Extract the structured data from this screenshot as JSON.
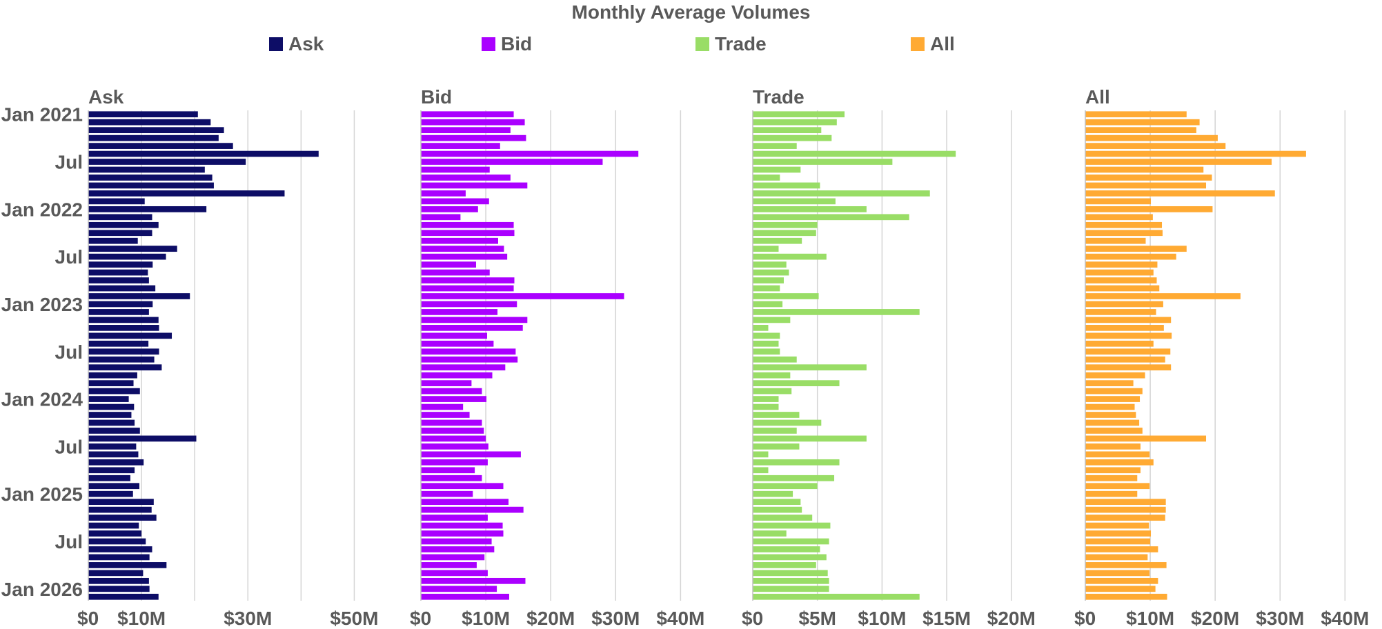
{
  "chart_data": {
    "type": "bar",
    "title": "Monthly Average Volumes",
    "orientation": "horizontal",
    "legend": [
      "Ask",
      "Bid",
      "Trade",
      "All"
    ],
    "legend_position": "top",
    "grid": true,
    "month_labels": [
      "Jan 2021",
      "Jul",
      "Jan 2022",
      "Jul",
      "Jan 2023",
      "Jul",
      "Jan 2024",
      "Jul",
      "Jan 2025",
      "Jul",
      "Jan 2026"
    ],
    "panels": [
      {
        "name": "Ask",
        "color": "#0d0d66",
        "xlim": [
          0,
          55
        ],
        "gridlines": [
          10,
          20,
          30,
          40,
          50
        ],
        "ticks": [
          {
            "v": 0,
            "label": "$0"
          },
          {
            "v": 10,
            "label": "$10M"
          },
          {
            "v": 30,
            "label": "$30M"
          },
          {
            "v": 50,
            "label": "$50M"
          }
        ],
        "values": [
          20.6,
          23.0,
          25.5,
          24.5,
          27.2,
          43.3,
          29.6,
          21.9,
          23.3,
          23.6,
          36.9,
          10.6,
          22.2,
          12.0,
          13.2,
          12.0,
          9.3,
          16.7,
          14.6,
          12.1,
          11.2,
          11.4,
          12.6,
          19.1,
          12.1,
          11.4,
          13.2,
          13.3,
          15.7,
          11.3,
          13.3,
          12.4,
          13.8,
          9.2,
          8.5,
          9.7,
          7.6,
          8.6,
          8.1,
          8.7,
          9.7,
          20.3,
          9.0,
          9.4,
          10.4,
          8.7,
          7.9,
          9.6,
          8.4,
          12.3,
          11.9,
          12.8,
          9.5,
          10.0,
          10.8,
          12.0,
          11.5,
          14.7,
          10.3,
          11.4,
          11.5,
          13.2
        ]
      },
      {
        "name": "Bid",
        "color": "#aa00ff",
        "xlim": [
          0,
          44
        ],
        "gridlines": [
          10,
          20,
          30,
          40
        ],
        "ticks": [
          {
            "v": 0,
            "label": "$0"
          },
          {
            "v": 10,
            "label": "$10M"
          },
          {
            "v": 20,
            "label": "$20M"
          },
          {
            "v": 30,
            "label": "$30M"
          },
          {
            "v": 40,
            "label": "$40M"
          }
        ],
        "values": [
          14.3,
          16.0,
          13.8,
          16.2,
          12.2,
          33.5,
          28.0,
          10.6,
          13.8,
          16.4,
          6.9,
          10.5,
          8.8,
          6.1,
          14.3,
          14.4,
          11.9,
          12.8,
          13.3,
          8.5,
          10.6,
          14.4,
          14.3,
          31.3,
          14.8,
          11.8,
          16.4,
          15.7,
          10.2,
          11.2,
          14.6,
          14.9,
          13.0,
          11.0,
          7.8,
          9.4,
          10.1,
          6.5,
          7.5,
          9.4,
          9.7,
          10.0,
          10.4,
          15.4,
          10.3,
          8.3,
          9.4,
          12.7,
          8.0,
          13.5,
          15.8,
          10.3,
          12.6,
          12.7,
          10.9,
          11.3,
          9.8,
          8.6,
          10.3,
          16.1,
          11.7,
          13.6
        ]
      },
      {
        "name": "Trade",
        "color": "#99dd66",
        "xlim": [
          0,
          23
        ],
        "gridlines": [
          5,
          10,
          15,
          20
        ],
        "ticks": [
          {
            "v": 0,
            "label": "$0"
          },
          {
            "v": 5,
            "label": "$5M"
          },
          {
            "v": 10,
            "label": "$10M"
          },
          {
            "v": 15,
            "label": "$15M"
          },
          {
            "v": 20,
            "label": "$20M"
          }
        ],
        "values": [
          7.1,
          6.5,
          5.3,
          6.1,
          3.4,
          15.7,
          10.8,
          3.7,
          2.1,
          5.2,
          13.7,
          6.4,
          8.8,
          12.1,
          5.0,
          4.9,
          3.8,
          2.0,
          5.7,
          2.6,
          2.8,
          2.4,
          2.1,
          5.1,
          2.3,
          12.9,
          2.9,
          1.2,
          2.1,
          2.0,
          2.1,
          3.4,
          8.8,
          2.9,
          6.7,
          3.0,
          2.0,
          2.0,
          3.6,
          5.3,
          3.4,
          8.8,
          3.6,
          1.2,
          6.7,
          1.2,
          6.3,
          5.0,
          3.1,
          3.7,
          3.8,
          4.6,
          6.0,
          2.6,
          5.9,
          5.2,
          5.7,
          4.9,
          5.8,
          5.9,
          5.9,
          12.9
        ]
      },
      {
        "name": "All",
        "color": "#ffaa33",
        "xlim": [
          0,
          44
        ],
        "gridlines": [
          10,
          20,
          30,
          40
        ],
        "ticks": [
          {
            "v": 0,
            "label": "$0"
          },
          {
            "v": 10,
            "label": "$10M"
          },
          {
            "v": 20,
            "label": "$20M"
          },
          {
            "v": 30,
            "label": "$30M"
          },
          {
            "v": 40,
            "label": "$40M"
          }
        ],
        "values": [
          15.6,
          17.6,
          17.1,
          20.4,
          21.6,
          34.0,
          28.7,
          18.2,
          19.5,
          18.6,
          29.2,
          10.1,
          19.6,
          10.4,
          11.8,
          11.9,
          9.3,
          15.6,
          14.0,
          11.1,
          10.5,
          11.0,
          11.4,
          23.9,
          12.0,
          10.9,
          13.2,
          12.1,
          13.3,
          10.5,
          13.1,
          12.3,
          13.2,
          9.2,
          7.4,
          8.8,
          8.4,
          7.6,
          7.8,
          8.3,
          8.8,
          18.6,
          8.5,
          9.9,
          10.5,
          8.5,
          8.0,
          9.9,
          8.0,
          12.4,
          12.4,
          12.3,
          9.8,
          10.1,
          10.0,
          11.2,
          9.6,
          12.5,
          9.9,
          11.2,
          10.8,
          12.6
        ]
      }
    ]
  }
}
